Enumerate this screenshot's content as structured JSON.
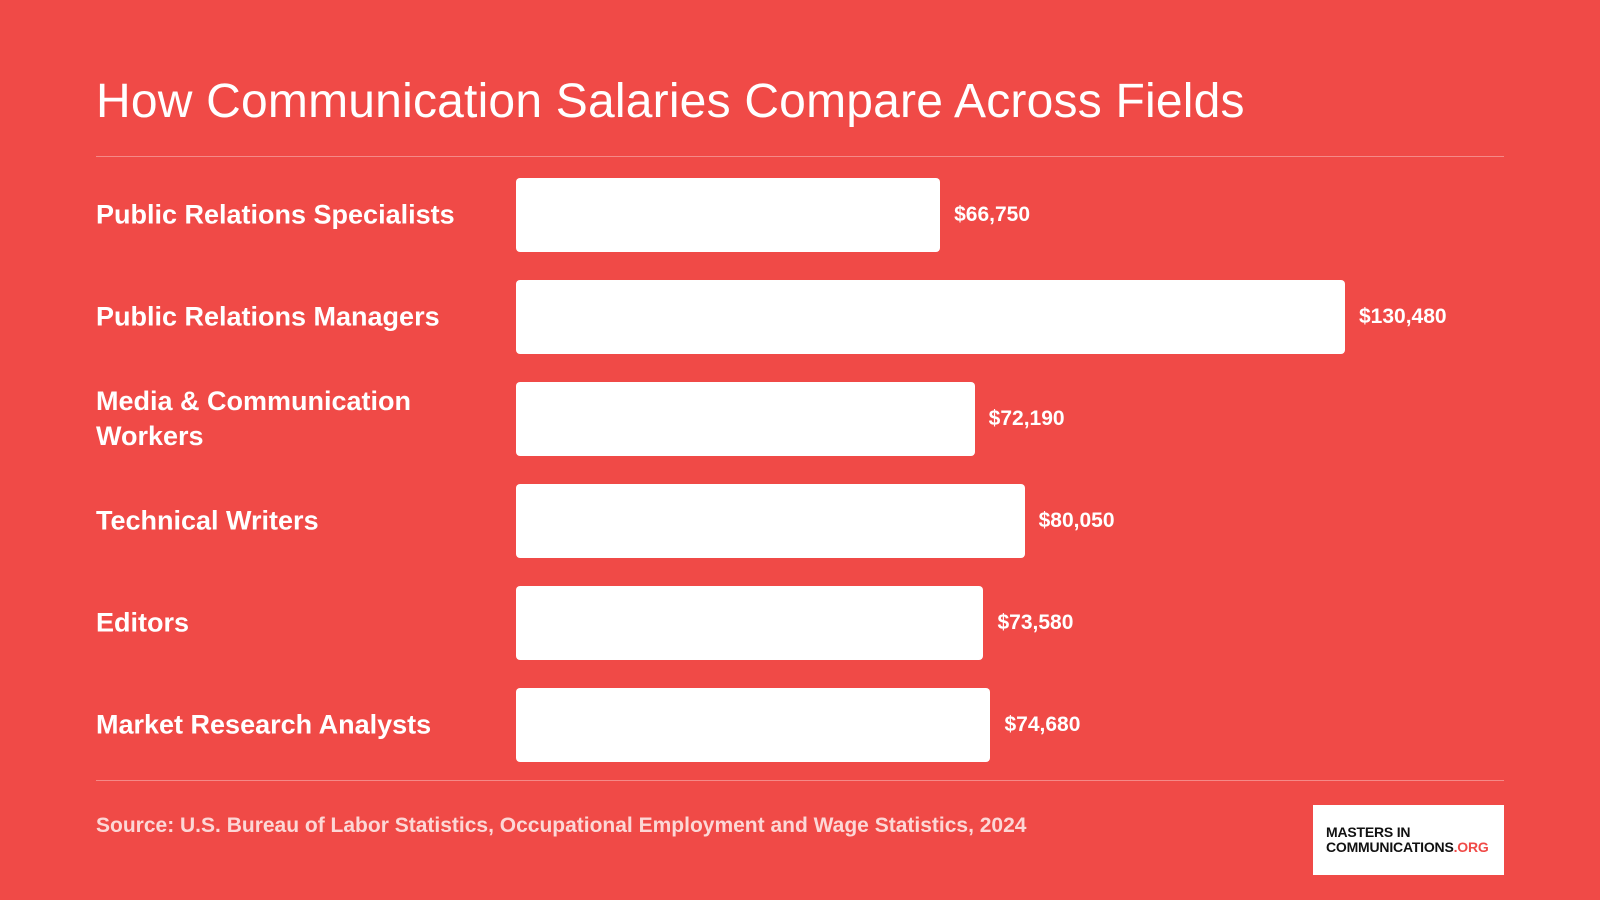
{
  "title": "How Communication Salaries Compare Across Fields",
  "source": "Source: U.S. Bureau of Labor Statistics, Occupational Employment and Wage Statistics, 2024",
  "logo": {
    "line1": "MASTERS IN",
    "line2": "COMMUNICATIONS",
    "suffix": ".ORG",
    "suffix_color": "#F04A47"
  },
  "colors": {
    "background": "#F04A47",
    "bar": "#FFFFFF",
    "text": "#FFFFFF"
  },
  "chart_data": {
    "type": "bar",
    "orientation": "horizontal",
    "title": "How Communication Salaries Compare Across Fields",
    "xlabel": "",
    "ylabel": "",
    "categories": [
      "Public Relations Specialists",
      "Public Relations Managers",
      "Media & Communication Workers",
      "Technical Writers",
      "Editors",
      "Market Research Analysts"
    ],
    "values": [
      66750,
      130480,
      72190,
      80050,
      73580,
      74680
    ],
    "value_labels": [
      "$66,750",
      "$130,480",
      "$72,190",
      "$80,050",
      "$73,580",
      "$74,680"
    ],
    "xlim": [
      0,
      130480
    ],
    "grid": false,
    "legend": "none"
  }
}
